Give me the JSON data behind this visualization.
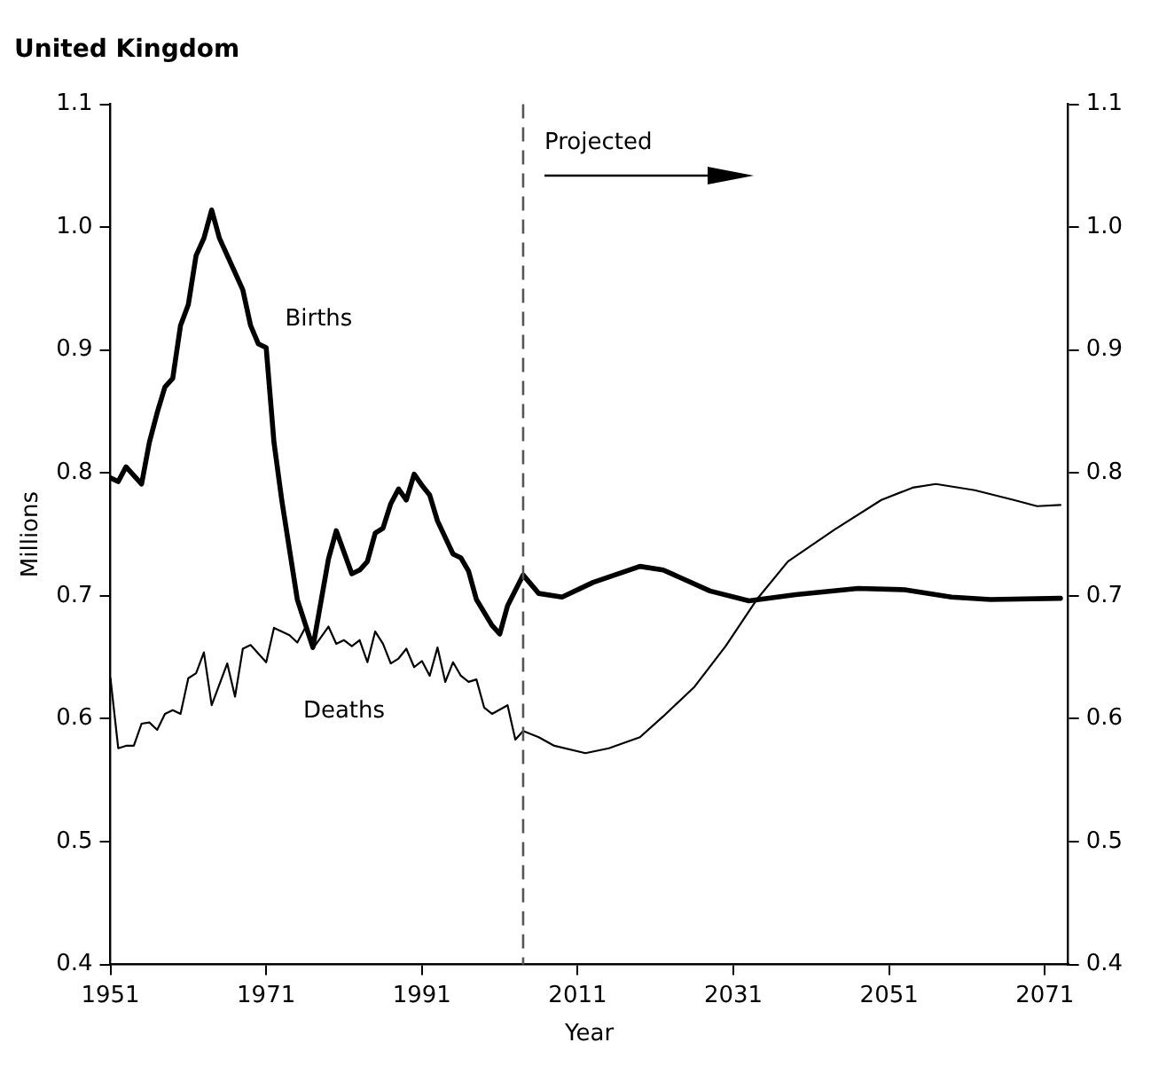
{
  "chart_data": {
    "type": "line",
    "title": "United Kingdom",
    "xlabel": "Year",
    "ylabel": "Millions",
    "xlim": [
      1951,
      2074
    ],
    "xticks": [
      1951,
      1971,
      1991,
      2011,
      2031,
      2051,
      2071
    ],
    "ylim": [
      0.4,
      1.1
    ],
    "yticks": [
      0.4,
      0.5,
      0.6,
      0.7,
      0.8,
      0.9,
      {
        "value": 1,
        "label": "1.0"
      },
      1.1
    ],
    "y2lim": [
      0.4,
      1.1
    ],
    "y2ticks": [
      0.4,
      0.5,
      0.6,
      0.7,
      0.8,
      0.9,
      {
        "value": 1,
        "label": "1.0"
      },
      1.1
    ],
    "grid": false,
    "legend": false,
    "marker": "none",
    "line_style": "solid",
    "series": [
      {
        "name": "Births",
        "color": "#000000",
        "x": [
          1951,
          1952,
          1953,
          1955,
          1956,
          1957,
          1958,
          1959,
          1960,
          1961,
          1962,
          1963,
          1964,
          1965,
          1967,
          1968,
          1969,
          1970,
          1971,
          1972,
          1973,
          1975,
          1977,
          1979,
          1980,
          1982,
          1983,
          1984,
          1985,
          1986,
          1987,
          1988,
          1989,
          1990,
          1991,
          1992,
          1993,
          1995,
          1996,
          1997,
          1998,
          2000,
          2001,
          2002,
          2004,
          2006,
          2009,
          2013,
          2019,
          2022,
          2028,
          2033,
          2039,
          2047,
          2053,
          2059,
          2064,
          2073
        ],
        "values": [
          0.796,
          0.793,
          0.805,
          0.791,
          0.825,
          0.849,
          0.87,
          0.877,
          0.92,
          0.937,
          0.977,
          0.991,
          1.014,
          0.991,
          0.963,
          0.949,
          0.92,
          0.905,
          0.902,
          0.825,
          0.778,
          0.697,
          0.658,
          0.73,
          0.753,
          0.718,
          0.721,
          0.728,
          0.751,
          0.755,
          0.775,
          0.787,
          0.778,
          0.799,
          0.79,
          0.782,
          0.761,
          0.734,
          0.731,
          0.72,
          0.697,
          0.676,
          0.669,
          0.692,
          0.717,
          0.702,
          0.699,
          0.711,
          0.724,
          0.721,
          0.704,
          0.696,
          0.701,
          0.706,
          0.705,
          0.699,
          0.697,
          0.698
        ]
      },
      {
        "name": "Deaths",
        "color": "#000000",
        "x": [
          1951,
          1952,
          1953,
          1954,
          1955,
          1956,
          1957,
          1958,
          1959,
          1960,
          1961,
          1962,
          1963,
          1964,
          1965,
          1966,
          1967,
          1968,
          1969,
          1971,
          1972,
          1974,
          1975,
          1976,
          1977,
          1979,
          1980,
          1981,
          1982,
          1983,
          1984,
          1985,
          1986,
          1987,
          1988,
          1989,
          1990,
          1991,
          1992,
          1993,
          1994,
          1995,
          1996,
          1997,
          1998,
          1999,
          2000,
          2002,
          2003,
          2004,
          2006,
          2008,
          2012,
          2015,
          2019,
          2022,
          2026,
          2030,
          2034,
          2038,
          2044,
          2050,
          2054,
          2057,
          2062,
          2067,
          2070,
          2073
        ],
        "values": [
          0.633,
          0.576,
          0.578,
          0.578,
          0.596,
          0.597,
          0.591,
          0.604,
          0.607,
          0.604,
          0.633,
          0.637,
          0.654,
          0.611,
          0.628,
          0.645,
          0.618,
          0.657,
          0.66,
          0.646,
          0.674,
          0.668,
          0.662,
          0.674,
          0.657,
          0.675,
          0.661,
          0.664,
          0.659,
          0.664,
          0.646,
          0.671,
          0.661,
          0.645,
          0.649,
          0.657,
          0.642,
          0.647,
          0.635,
          0.658,
          0.63,
          0.646,
          0.635,
          0.63,
          0.632,
          0.609,
          0.604,
          0.611,
          0.583,
          0.59,
          0.585,
          0.578,
          0.572,
          0.576,
          0.585,
          0.602,
          0.626,
          0.659,
          0.697,
          0.728,
          0.754,
          0.778,
          0.788,
          0.791,
          0.786,
          0.778,
          0.773,
          0.774
        ]
      }
    ],
    "ref_lines": [
      {
        "axis": "x",
        "value": 2004,
        "label": "Projected",
        "line_style": "dashed",
        "color": "#555555"
      }
    ]
  }
}
